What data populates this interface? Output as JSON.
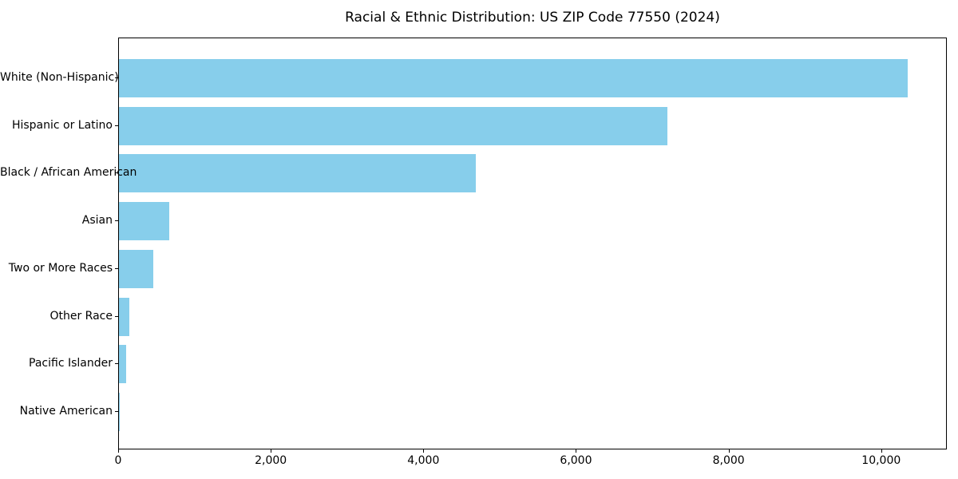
{
  "chart_data": {
    "type": "bar",
    "orientation": "horizontal",
    "title": "Racial & Ethnic Distribution: US ZIP Code 77550 (2024)",
    "xlabel": "",
    "ylabel": "",
    "categories": [
      "White (Non-Hispanic)",
      "Hispanic or Latino",
      "Black / African American",
      "Asian",
      "Two or More Races",
      "Other Race",
      "Pacific Islander",
      "Native American"
    ],
    "values": [
      10340,
      7185,
      4675,
      655,
      447,
      135,
      92,
      8
    ],
    "xlim": [
      0,
      10860
    ],
    "xticks": {
      "values": [
        0,
        2000,
        4000,
        6000,
        8000,
        10000
      ],
      "labels": [
        "0",
        "2,000",
        "4,000",
        "6,000",
        "8,000",
        "10,000"
      ]
    },
    "grid": false,
    "legend": "none",
    "bar_color": "#87CEEB",
    "spine_color": "#000000",
    "text_color": "#000000"
  }
}
